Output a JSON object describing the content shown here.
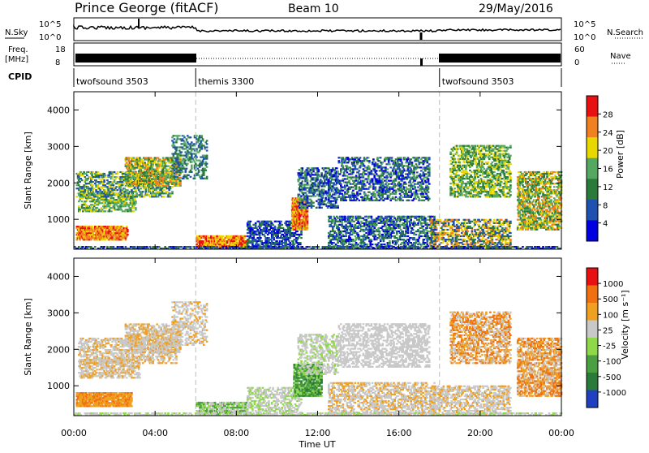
{
  "header": {
    "station": "Prince George (fitACF)",
    "beam": "Beam 10",
    "date": "29/May/2016"
  },
  "top_panels": {
    "nsky_label": "N.Sky",
    "nsky_ticks": [
      "10^5",
      "10^0"
    ],
    "nsearch_label": "N.Search",
    "nsearch_ticks": [
      "10^5",
      "10^0"
    ],
    "freq_label_1": "Freq.",
    "freq_label_2": "[MHz]",
    "freq_ticks": [
      "18",
      "8"
    ],
    "nave_label": "Nave",
    "nave_ticks": [
      "60",
      "0"
    ],
    "cpid_label": "CPID",
    "cpid_segments": [
      {
        "label": "twofsound 3503",
        "start": 0,
        "end": 6
      },
      {
        "label": "themis 3300",
        "start": 6,
        "end": 18
      },
      {
        "label": "twofsound 3503",
        "start": 18,
        "end": 24
      }
    ]
  },
  "chart_data": [
    {
      "type": "heatmap",
      "name": "power",
      "ylabel": "Slant Range [km]",
      "xlim": [
        0,
        24
      ],
      "ylim": [
        180,
        4500
      ],
      "yticks": [
        "1000",
        "2000",
        "3000",
        "4000"
      ],
      "colorbar_label": "Power [dB]",
      "colorbar_ticks": [
        "28",
        "24",
        "20",
        "16",
        "12",
        "8",
        "4"
      ],
      "colors": [
        "#0000e0",
        "#2050b0",
        "#2a7a3a",
        "#55a860",
        "#e8d800",
        "#f08020",
        "#e81010"
      ]
    },
    {
      "type": "heatmap",
      "name": "velocity",
      "ylabel": "Slant Range [km]",
      "xlim": [
        0,
        24
      ],
      "ylim": [
        180,
        4500
      ],
      "yticks": [
        "1000",
        "2000",
        "3000",
        "4000"
      ],
      "colorbar_label": "Velocity [m s⁻¹]",
      "colorbar_ticks": [
        "1000",
        "500",
        "100",
        "25",
        "-25",
        "-100",
        "-500",
        "-1000"
      ],
      "colors": [
        "#2040c0",
        "#2a7a3a",
        "#4aa040",
        "#8ed84a",
        "#c8c8c8",
        "#f0a020",
        "#f07010",
        "#e81010"
      ]
    }
  ],
  "x_axis": {
    "ticks": [
      "00:00",
      "04:00",
      "08:00",
      "12:00",
      "16:00",
      "20:00",
      "00:00"
    ],
    "label": "Time UT"
  }
}
